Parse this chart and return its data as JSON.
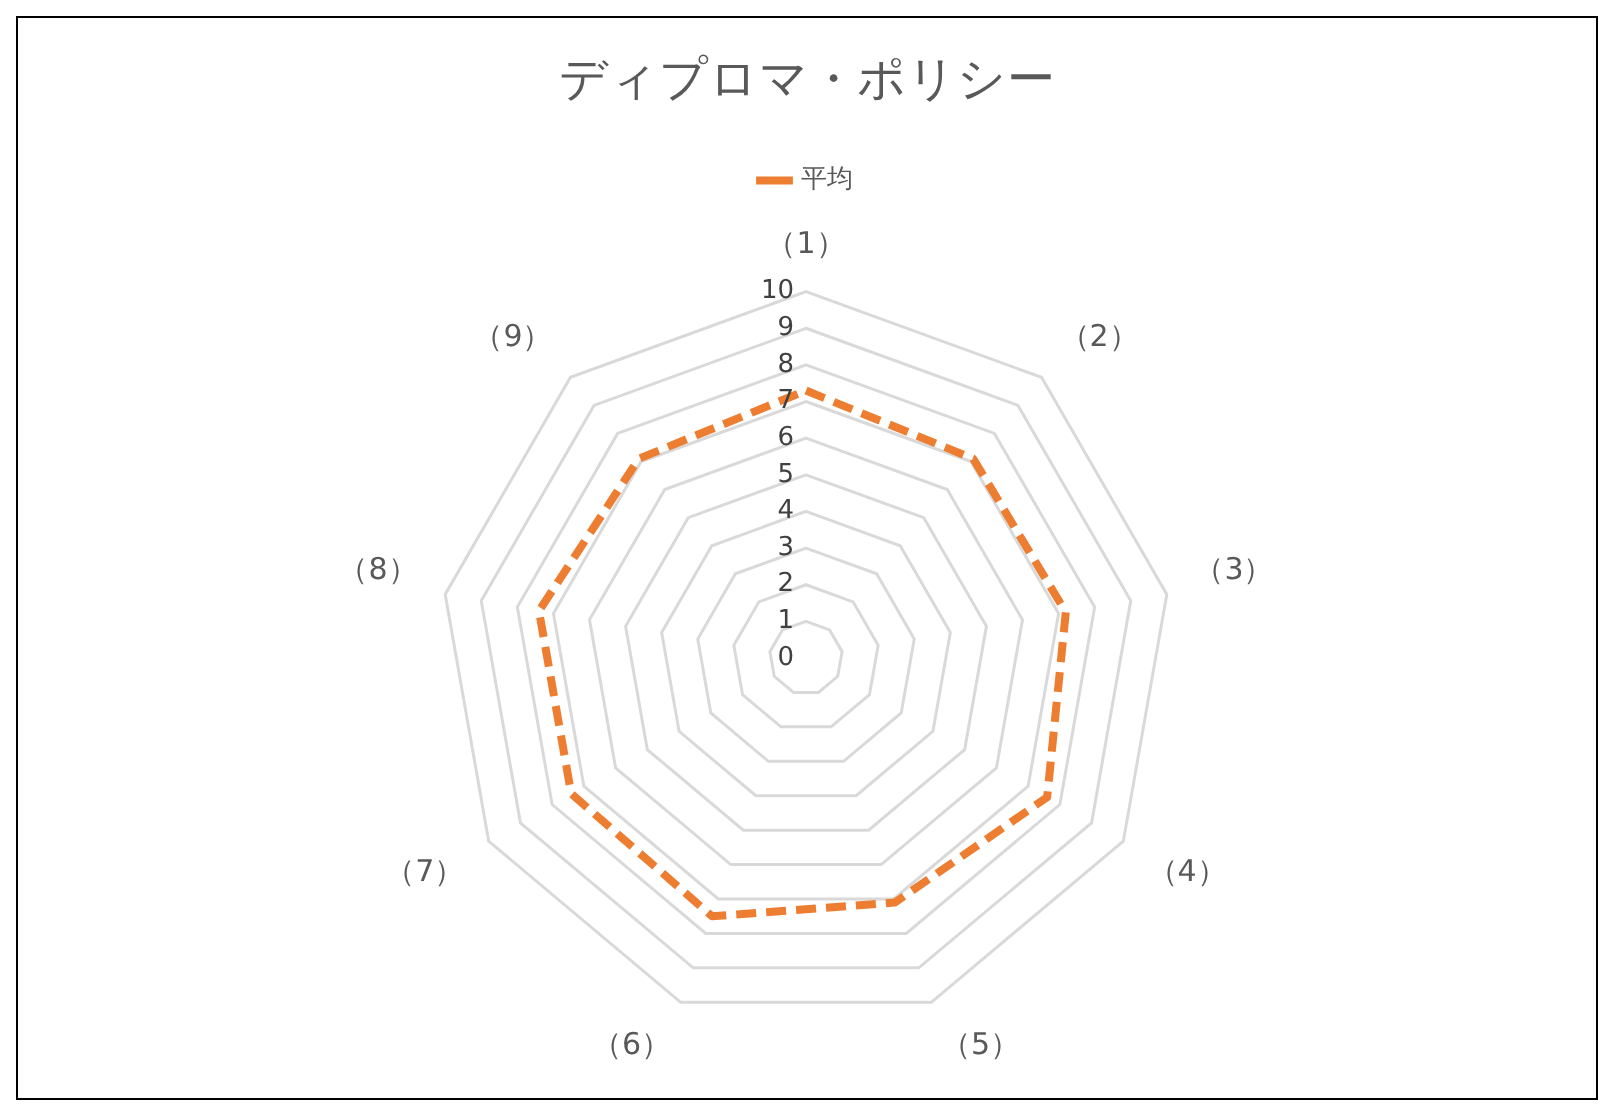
{
  "chart_data": {
    "type": "radar",
    "title": "ディプロマ・ポリシー",
    "categories": [
      "（1）",
      "（2）",
      "（3）",
      "（4）",
      "（5）",
      "（6）",
      "（7）",
      "（8）",
      "（9）"
    ],
    "series": [
      {
        "name": "平均",
        "color": "#ed7d31",
        "values": [
          7.3,
          7.1,
          7.2,
          7.6,
          7.1,
          7.5,
          7.4,
          7.4,
          7.1
        ]
      }
    ],
    "ylim": [
      0,
      10
    ],
    "yticks": [
      0,
      1,
      2,
      3,
      4,
      5,
      6,
      7,
      8,
      9,
      10
    ],
    "grid": true,
    "legend": "top",
    "marker": "none",
    "line_style": "dashed"
  }
}
